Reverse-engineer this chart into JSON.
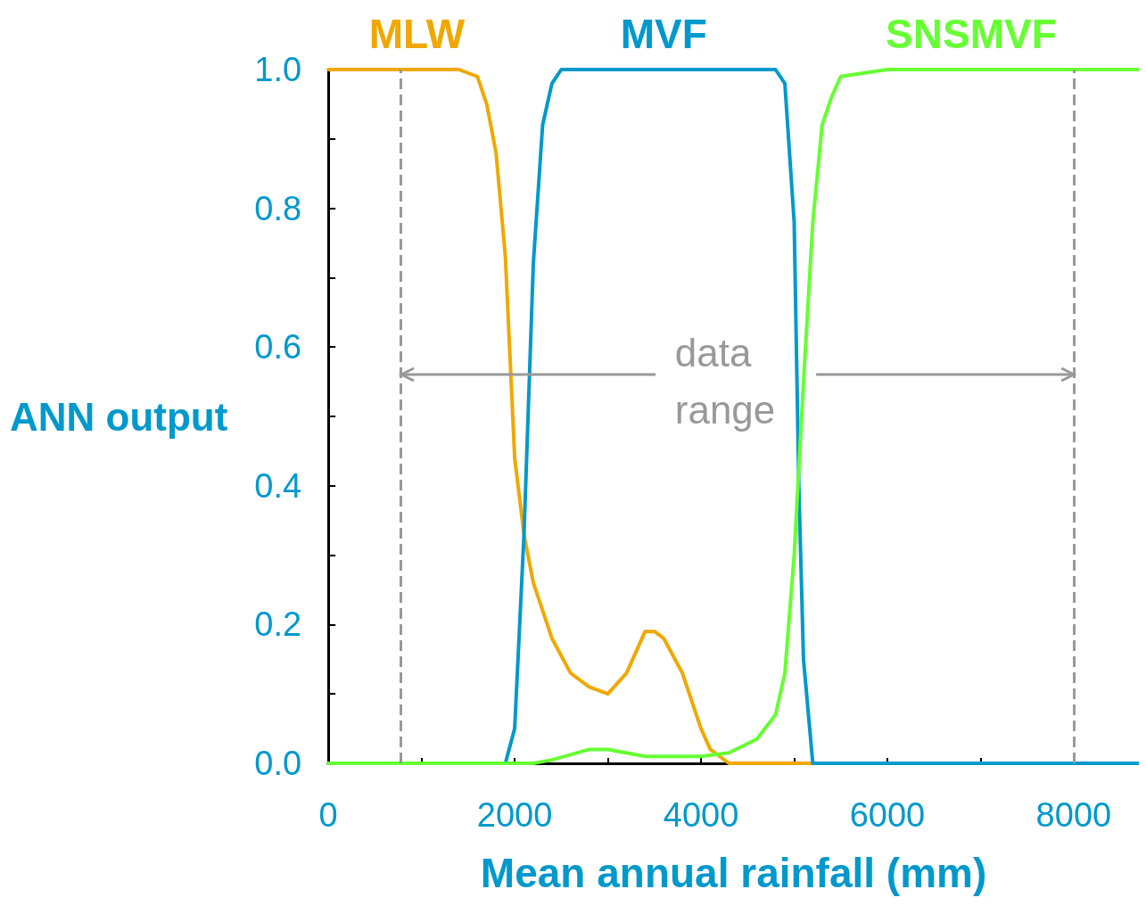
{
  "chart_data": {
    "type": "line",
    "xlabel": "Mean annual rainfall (mm)",
    "ylabel": "ANN output",
    "xlim": [
      0,
      8700
    ],
    "xticks": [
      0,
      2000,
      4000,
      6000,
      8000
    ],
    "ylim": [
      0,
      1
    ],
    "yticks": [
      {
        "value": 0,
        "label": "0.0"
      },
      {
        "value": 0.2,
        "label": "0.2"
      },
      {
        "value": 0.4,
        "label": "0.4"
      },
      {
        "value": 0.6,
        "label": "0.6"
      },
      {
        "value": 0.8,
        "label": "0.8"
      },
      {
        "value": 1,
        "label": "1.0"
      }
    ],
    "grid": false,
    "legend": false,
    "marker": "none",
    "line_style": "solid",
    "series": [
      {
        "name": "MLW",
        "color": "#f0a800",
        "x": [
          0,
          1400,
          1600,
          1700,
          1800,
          1900,
          2000,
          2100,
          2200,
          2400,
          2600,
          2800,
          3000,
          3200,
          3400,
          3500,
          3600,
          3800,
          4000,
          4100,
          4300,
          4500,
          8700
        ],
        "values": [
          1,
          1,
          0.99,
          0.95,
          0.88,
          0.73,
          0.44,
          0.33,
          0.26,
          0.18,
          0.13,
          0.11,
          0.1,
          0.13,
          0.19,
          0.19,
          0.18,
          0.13,
          0.05,
          0.02,
          0,
          0,
          0
        ]
      },
      {
        "name": "MVF",
        "color": "#0099cc",
        "x": [
          0,
          1900,
          2000,
          2100,
          2200,
          2300,
          2400,
          2500,
          4800,
          4900,
          5000,
          5050,
          5100,
          5200,
          8700
        ],
        "values": [
          0,
          0,
          0.05,
          0.33,
          0.72,
          0.92,
          0.98,
          1,
          1,
          0.98,
          0.78,
          0.4,
          0.15,
          0,
          0
        ]
      },
      {
        "name": "SNSMVF",
        "color": "#66ff33",
        "x": [
          0,
          2200,
          2400,
          2800,
          3000,
          3400,
          4000,
          4300,
          4600,
          4800,
          4900,
          5000,
          5100,
          5200,
          5300,
          5400,
          5500,
          6000,
          8700
        ],
        "values": [
          0,
          0,
          0.005,
          0.02,
          0.02,
          0.01,
          0.01,
          0.015,
          0.035,
          0.07,
          0.13,
          0.3,
          0.55,
          0.78,
          0.92,
          0.96,
          0.99,
          1,
          1
        ]
      }
    ],
    "ref_lines": [
      {
        "axis": "x",
        "value": 780,
        "color": "#999999",
        "line_style": "dashed"
      },
      {
        "axis": "x",
        "value": 8000,
        "color": "#999999",
        "line_style": "dashed"
      }
    ],
    "annotations": [
      {
        "text": "data range",
        "x": 780,
        "y": 0.56
      }
    ]
  }
}
